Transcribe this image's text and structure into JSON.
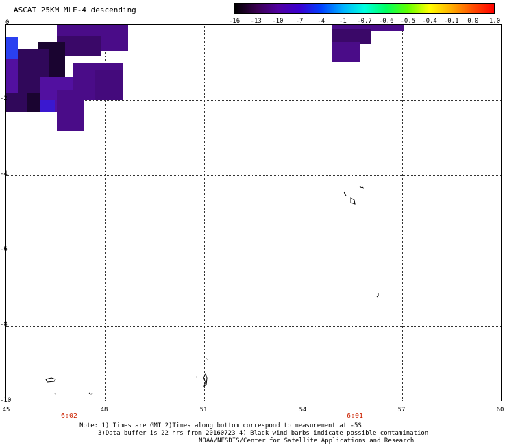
{
  "title": "ASCAT 25KM MLE-4 descending",
  "colorbar": {
    "labels": [
      "-16",
      "-13",
      "-10",
      "-7",
      "-4",
      "-1",
      "-0.7",
      "-0.6",
      "-0.5",
      "-0.4",
      "-0.1",
      "0.0",
      "1.0"
    ],
    "colors": [
      "#000000",
      "#3a0050",
      "#5000a0",
      "#3a00d0",
      "#0040ff",
      "#00b0ff",
      "#00ffe0",
      "#00ff60",
      "#60ff00",
      "#ffff00",
      "#ffb000",
      "#ff5000",
      "#ff0000"
    ]
  },
  "axes": {
    "x_ticks": [
      "45",
      "48",
      "51",
      "54",
      "57",
      "60"
    ],
    "y_ticks": [
      "0",
      "-2",
      "-4",
      "-6",
      "-8",
      "-10"
    ],
    "x_range": [
      45,
      60
    ],
    "y_range": [
      -10,
      0
    ]
  },
  "time_labels": [
    {
      "lon": 46.9,
      "text": "6:02"
    },
    {
      "lon": 55.3,
      "text": "6:01"
    }
  ],
  "swath_colors": {
    "dark": "#1a0430",
    "deep": "#30085a",
    "mid": "#400a78",
    "purple": "#4a0c88",
    "violet": "#5210a0",
    "blue": "#3a18d0",
    "bright_blue": "#2a40f0"
  },
  "notes": {
    "line1": "Note: 1) Times are GMT 2)Times along bottom correspond to measurement at -5S",
    "line2": "3)Data buffer is 22 hrs from 20160723 4) Black wind barbs indicate possible contamination",
    "line3": "NOAA/NESDIS/Center for Satellite Applications and Research"
  }
}
